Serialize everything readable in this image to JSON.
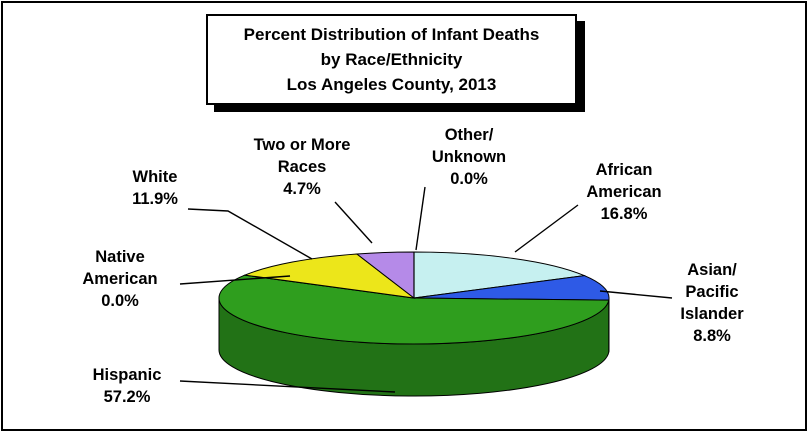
{
  "chart_data": {
    "type": "pie",
    "style": "3d",
    "title": [
      "Percent Distribution of Infant Deaths",
      "by Race/Ethnicity",
      "Los Angeles County, 2013"
    ],
    "unit": "%",
    "slices": [
      {
        "name": [
          "African",
          "American"
        ],
        "value": 16.8,
        "value_label": "16.8%",
        "color": "#c6f0f0"
      },
      {
        "name": [
          "Asian/",
          "Pacific",
          "Islander"
        ],
        "value": 8.8,
        "value_label": "8.8%",
        "color": "#2e5ae6"
      },
      {
        "name": [
          "Hispanic"
        ],
        "value": 57.2,
        "value_label": "57.2%",
        "color": "#2f9e1e"
      },
      {
        "name": [
          "Native",
          "American"
        ],
        "value": 0.0,
        "value_label": "0.0%",
        "color": "#1a1a1a"
      },
      {
        "name": [
          "White"
        ],
        "value": 11.9,
        "value_label": "11.9%",
        "color": "#ece61a"
      },
      {
        "name": [
          "Two or More",
          "Races"
        ],
        "value": 4.7,
        "value_label": "4.7%",
        "color": "#b58ae8"
      },
      {
        "name": [
          "Other/",
          "Unknown"
        ],
        "value": 0.0,
        "value_label": "0.0%",
        "color": "#3030a0"
      }
    ],
    "legend": "none",
    "grid": false
  }
}
